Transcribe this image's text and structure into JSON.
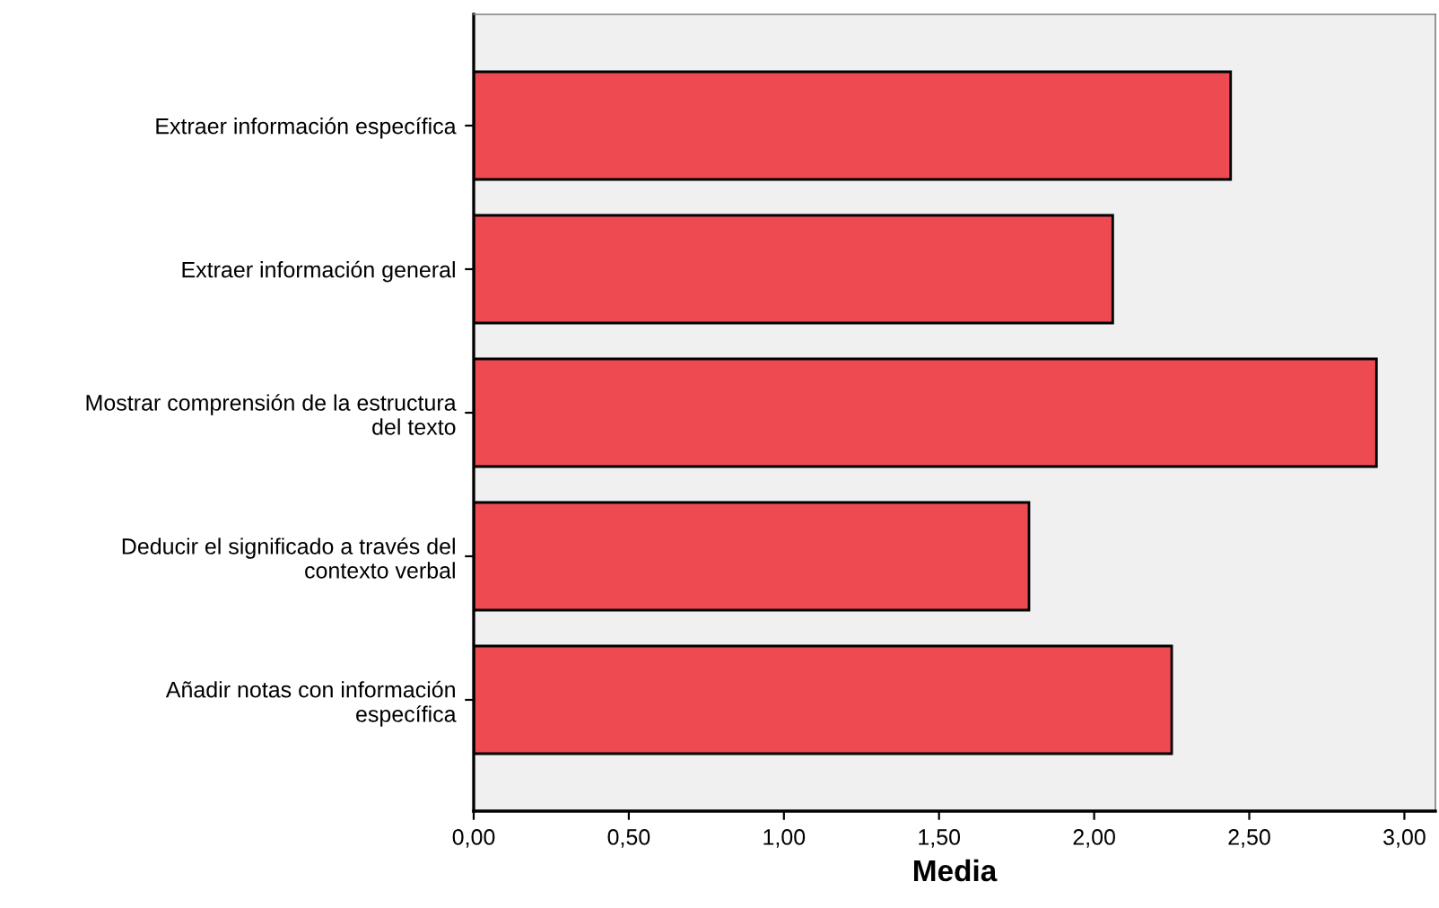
{
  "chart_data": {
    "type": "bar",
    "orientation": "horizontal",
    "xlabel": "Media",
    "categories": [
      "Extraer información específica",
      "Extraer información general",
      "Mostrar comprensión de la estructura\ndel texto",
      "Deducir el significado a través del\ncontexto verbal",
      "Añadir notas con información\nespecífica"
    ],
    "values": [
      2.44,
      2.06,
      2.91,
      1.79,
      2.25
    ],
    "color": "#ee4a52",
    "xlim": [
      0,
      3.1
    ],
    "xticks": [
      {
        "value": 0,
        "label": "0,00"
      },
      {
        "value": 0.5,
        "label": "0,50"
      },
      {
        "value": 1,
        "label": "1,00"
      },
      {
        "value": 1.5,
        "label": "1,50"
      },
      {
        "value": 2,
        "label": "2,00"
      },
      {
        "value": 2.5,
        "label": "2,50"
      },
      {
        "value": 3,
        "label": "3,00"
      }
    ],
    "grid": false,
    "legend": false
  }
}
